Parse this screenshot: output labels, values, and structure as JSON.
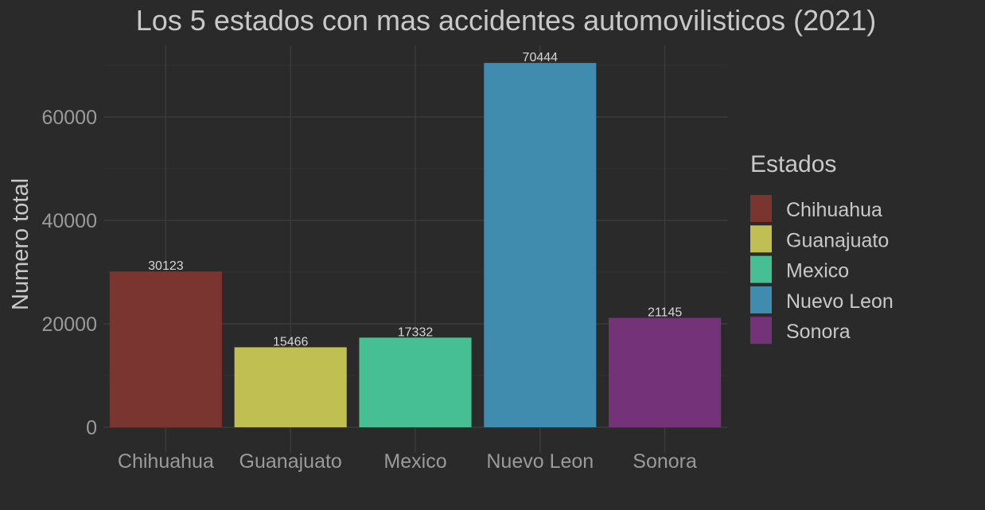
{
  "chart_data": {
    "type": "bar",
    "title": "Los 5 estados con mas accidentes automovilisticos (2021)",
    "xlabel": "",
    "ylabel": "Numero total",
    "categories": [
      "Chihuahua",
      "Guanajuato",
      "Mexico",
      "Nuevo Leon",
      "Sonora"
    ],
    "values": [
      30123,
      15466,
      17332,
      70444,
      21145
    ],
    "colors": [
      "#7a3530",
      "#bfbf52",
      "#47bf94",
      "#3f8caf",
      "#743379"
    ],
    "ylim": [
      0,
      74000
    ],
    "yticks": [
      0,
      20000,
      40000,
      60000
    ],
    "grid": true,
    "legend": {
      "title": "Estados",
      "position": "right",
      "entries": [
        "Chihuahua",
        "Guanajuato",
        "Mexico",
        "Nuevo Leon",
        "Sonora"
      ]
    }
  }
}
